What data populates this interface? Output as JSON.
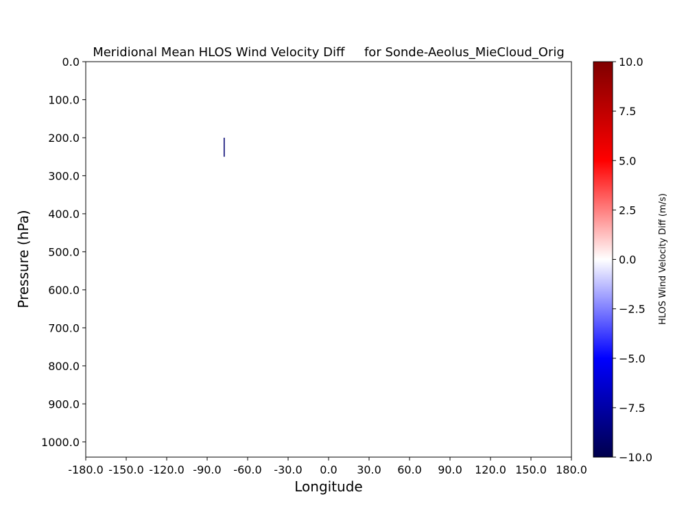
{
  "chart_data": {
    "type": "heatmap",
    "title": "Meridional Mean HLOS Wind Velocity Diff     for Sonde-Aeolus_MieCloud_Orig",
    "xlabel": "Longitude",
    "ylabel": "Pressure (hPa)",
    "xlim": [
      -180,
      180
    ],
    "ylim": [
      0,
      1040
    ],
    "y_inverted": true,
    "x_ticks": [
      "-180.0",
      "-150.0",
      "-120.0",
      "-90.0",
      "-60.0",
      "-30.0",
      "0.0",
      "30.0",
      "60.0",
      "90.0",
      "120.0",
      "150.0",
      "180.0"
    ],
    "y_ticks": [
      "0.0",
      "100.0",
      "200.0",
      "300.0",
      "400.0",
      "500.0",
      "600.0",
      "700.0",
      "800.0",
      "900.0",
      "1000.0"
    ],
    "cells": [
      {
        "lon_min": -77.8,
        "lon_max": -77.0,
        "p_min": 200,
        "p_max": 250,
        "value": -9.0
      }
    ],
    "colorbar": {
      "label": "HLOS Wind Velocity Diff (m/s)",
      "colormap": "seismic",
      "range": [
        -10,
        10
      ],
      "ticks": [
        "−10.0",
        "−7.5",
        "−5.0",
        "−2.5",
        "0.0",
        "2.5",
        "5.0",
        "7.5",
        "10.0"
      ],
      "stops": [
        "#00004c",
        "#0000ff",
        "#ffffff",
        "#ff0000",
        "#7f0000"
      ]
    }
  }
}
